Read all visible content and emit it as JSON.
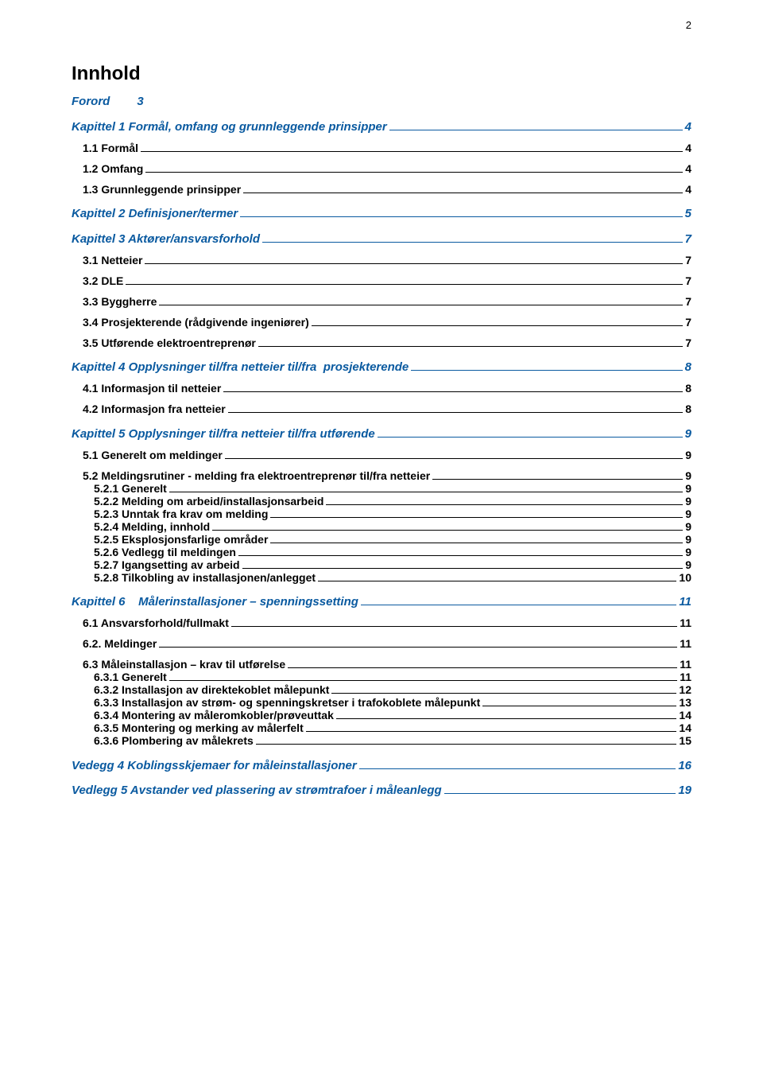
{
  "page_number": "2",
  "title": "Innhold",
  "colors": {
    "link_blue": "#0a5aa0",
    "text_black": "#000000",
    "bg": "#ffffff"
  },
  "forord": {
    "label": "Forord",
    "page": "3"
  },
  "entries": [
    {
      "level": "chapter",
      "color": "blue",
      "label": "Kapittel 1 Formål, omfang og grunnleggende prinsipper",
      "page": "4"
    },
    {
      "level": "section",
      "color": "black",
      "label": "1.1 Formål",
      "page": "4"
    },
    {
      "level": "section",
      "color": "black",
      "label": "1.2 Omfang",
      "page": "4"
    },
    {
      "level": "section",
      "color": "black",
      "label": "1.3 Grunnleggende prinsipper",
      "page": "4"
    },
    {
      "level": "chapter",
      "color": "blue",
      "label": "Kapittel 2 Definisjoner/termer",
      "page": "5"
    },
    {
      "level": "chapter",
      "color": "blue",
      "label": "Kapittel 3 Aktører/ansvarsforhold",
      "page": "7"
    },
    {
      "level": "section",
      "color": "black",
      "label": "3.1 Netteier",
      "page": "7"
    },
    {
      "level": "section",
      "color": "black",
      "label": "3.2 DLE",
      "page": "7"
    },
    {
      "level": "section",
      "color": "black",
      "label": "3.3 Byggherre",
      "page": "7"
    },
    {
      "level": "section",
      "color": "black",
      "label": "3.4 Prosjekterende (rådgivende ingeniører)",
      "page": "7"
    },
    {
      "level": "section",
      "color": "black",
      "label": "3.5 Utførende elektroentreprenør",
      "page": "7"
    },
    {
      "level": "chapter",
      "color": "blue",
      "label": "Kapittel 4 Opplysninger til/fra netteier til/fra  prosjekterende",
      "page": "8"
    },
    {
      "level": "section",
      "color": "black",
      "label": "4.1 Informasjon til netteier",
      "page": "8"
    },
    {
      "level": "section",
      "color": "black",
      "label": "4.2 Informasjon fra netteier",
      "page": "8"
    },
    {
      "level": "chapter",
      "color": "blue",
      "label": "Kapittel 5 Opplysninger til/fra netteier til/fra utførende",
      "page": "9"
    },
    {
      "level": "section",
      "color": "black",
      "label": "5.1 Generelt om meldinger",
      "page": "9"
    },
    {
      "level": "section",
      "color": "black",
      "label": "5.2 Meldingsrutiner - melding fra elektroentreprenør til/fra netteier",
      "page": "9"
    },
    {
      "level": "subsection",
      "color": "black",
      "label": "5.2.1 Generelt",
      "page": "9"
    },
    {
      "level": "subsection",
      "color": "black",
      "label": "5.2.2 Melding om arbeid/installasjonsarbeid",
      "page": "9"
    },
    {
      "level": "subsection",
      "color": "black",
      "label": "5.2.3 Unntak fra krav om melding",
      "page": "9"
    },
    {
      "level": "subsection",
      "color": "black",
      "label": "5.2.4 Melding, innhold",
      "page": "9"
    },
    {
      "level": "subsection",
      "color": "black",
      "label": "5.2.5 Eksplosjonsfarlige områder",
      "page": "9"
    },
    {
      "level": "subsection",
      "color": "black",
      "label": "5.2.6 Vedlegg til meldingen",
      "page": "9"
    },
    {
      "level": "subsection",
      "color": "black",
      "label": "5.2.7 Igangsetting av arbeid",
      "page": "9"
    },
    {
      "level": "subsection",
      "color": "black",
      "label": "5.2.8 Tilkobling av installasjonen/anlegget",
      "page": "10"
    },
    {
      "level": "chapter",
      "color": "blue",
      "label": "Kapittel 6    Målerinstallasjoner – spenningssetting",
      "page": "11"
    },
    {
      "level": "section",
      "color": "black",
      "label": "6.1 Ansvarsforhold/fullmakt",
      "page": "11"
    },
    {
      "level": "section",
      "color": "black",
      "label": "6.2. Meldinger",
      "page": "11"
    },
    {
      "level": "section",
      "color": "black",
      "label": "6.3 Måleinstallasjon – krav til utførelse",
      "page": "11"
    },
    {
      "level": "subsection",
      "color": "black",
      "label": "6.3.1 Generelt",
      "page": "11"
    },
    {
      "level": "subsection",
      "color": "black",
      "label": "6.3.2 Installasjon av direktekoblet målepunkt",
      "page": "12"
    },
    {
      "level": "subsection",
      "color": "black",
      "label": "6.3.3 Installasjon av strøm- og spenningskretser i trafokoblete målepunkt",
      "page": "13"
    },
    {
      "level": "subsection",
      "color": "black",
      "label": "6.3.4 Montering av måleromkobler/prøveuttak",
      "page": "14"
    },
    {
      "level": "subsection",
      "color": "black",
      "label": "6.3.5 Montering og merking av målerfelt",
      "page": "14"
    },
    {
      "level": "subsection",
      "color": "black",
      "label": "6.3.6 Plombering av målekrets",
      "page": "15"
    },
    {
      "level": "chapter",
      "color": "blue",
      "label": "Vedegg 4 Koblingsskjemaer for måleinstallasjoner",
      "page": "16"
    },
    {
      "level": "chapter",
      "color": "blue",
      "label": "Vedlegg 5 Avstander ved plassering av strømtrafoer i måleanlegg",
      "page": "19"
    }
  ]
}
